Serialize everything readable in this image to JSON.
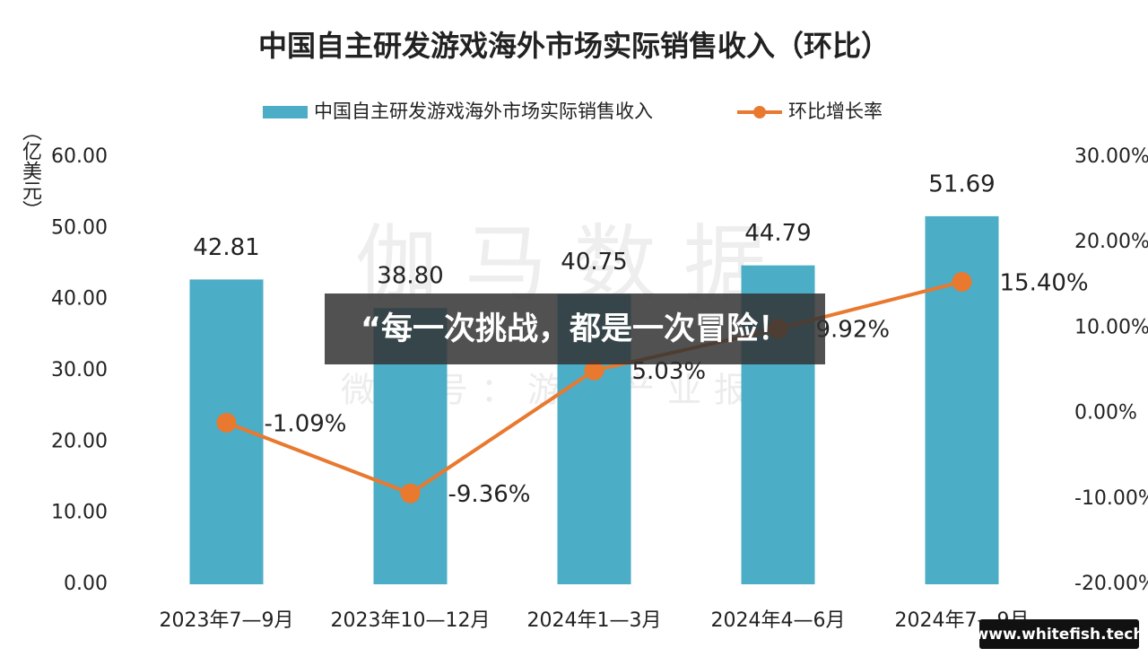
{
  "chart_data": {
    "type": "bar_line",
    "title": "中国自主研发游戏海外市场实际销售收入（环比）",
    "y_label": "（亿美元）",
    "categories": [
      "2023年7—9月",
      "2023年10—12月",
      "2024年1—3月",
      "2024年4—6月",
      "2024年7—9月"
    ],
    "series": [
      {
        "name": "中国自主研发游戏海外市场实际销售收入",
        "type": "bar",
        "color": "#4badc6",
        "values": [
          42.81,
          38.8,
          40.75,
          44.79,
          51.69
        ],
        "value_labels": [
          "42.81",
          "38.80",
          "40.75",
          "44.79",
          "51.69"
        ]
      },
      {
        "name": "环比增长率",
        "type": "line",
        "axis": "y2",
        "color": "#e8792f",
        "values": [
          -1.09,
          -9.36,
          5.03,
          9.92,
          15.4
        ],
        "value_labels": [
          "-1.09%",
          "-9.36%",
          "5.03%",
          "9.92%",
          "15.40%"
        ]
      }
    ],
    "ylim": [
      0,
      60
    ],
    "yticks": [
      {
        "value": 0,
        "label": "0.00"
      },
      {
        "value": 10,
        "label": "10.00"
      },
      {
        "value": 20,
        "label": "20.00"
      },
      {
        "value": 30,
        "label": "30.00"
      },
      {
        "value": 40,
        "label": "40.00"
      },
      {
        "value": 50,
        "label": "50.00"
      },
      {
        "value": 60,
        "label": "60.00"
      }
    ],
    "y2lim": [
      -20,
      30
    ],
    "y2ticks": [
      {
        "value": -20,
        "label": "-20.00%"
      },
      {
        "value": -10,
        "label": "-10.00%"
      },
      {
        "value": 0,
        "label": "0.00%"
      },
      {
        "value": 10,
        "label": "10.00%"
      },
      {
        "value": 20,
        "label": "20.00%"
      },
      {
        "value": 30,
        "label": "30.00%"
      }
    ],
    "grid": false
  },
  "watermarks": {
    "brand": "伽马数据",
    "account": "微信号：游戏产业报告",
    "site": "www.whitefish.tech"
  },
  "overlay": {
    "caption": "“每一次挑战，都是一次冒险！"
  }
}
